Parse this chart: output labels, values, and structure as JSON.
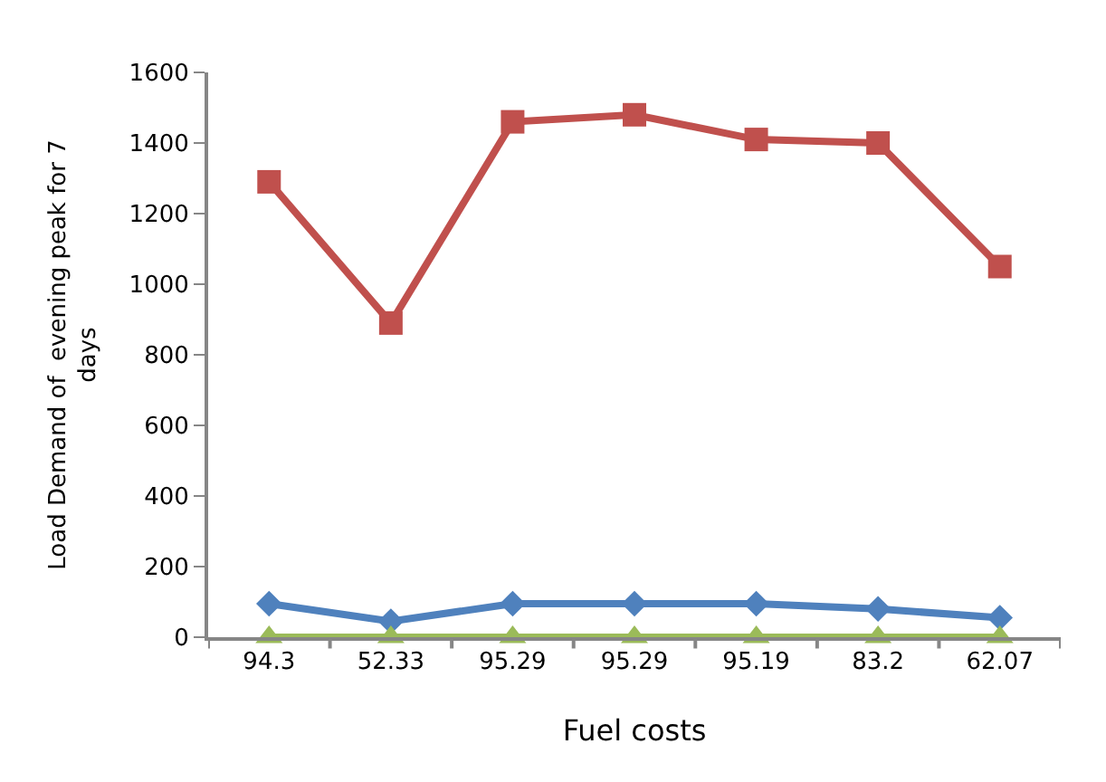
{
  "chart_data": {
    "type": "line",
    "xlabel": "Fuel costs",
    "ylabel": "Load Demand of  evening peak for 7 days",
    "categories": [
      "94.3",
      "52.33",
      "95.29",
      "95.29",
      "95.19",
      "83.2",
      "62.07"
    ],
    "series": [
      {
        "color": "#4f81bd",
        "marker": "diamond",
        "values": [
          95,
          45,
          95,
          95,
          95,
          80,
          55
        ]
      },
      {
        "color": "#c0504d",
        "marker": "square",
        "values": [
          1290,
          890,
          1460,
          1480,
          1410,
          1400,
          1050
        ]
      },
      {
        "color": "#9bbb59",
        "marker": "triangle",
        "values": [
          0,
          0,
          0,
          0,
          0,
          0,
          0
        ]
      }
    ],
    "ylim": [
      0,
      1600
    ],
    "yticks": [
      0,
      200,
      400,
      600,
      800,
      1000,
      1200,
      1400,
      1600
    ]
  }
}
